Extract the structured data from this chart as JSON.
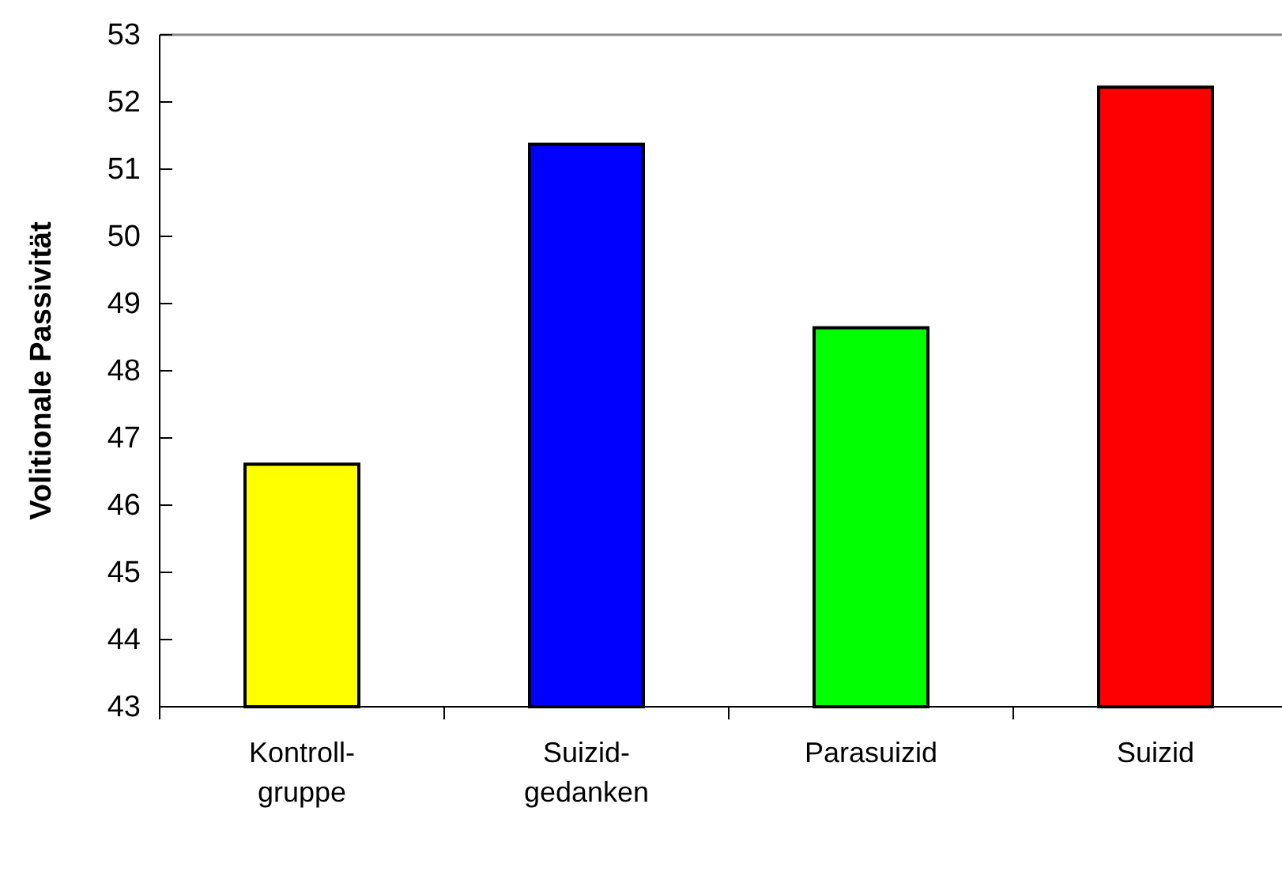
{
  "chart_data": {
    "type": "bar",
    "ylabel": "Volitionale Passivität",
    "categories": [
      "Kontroll-\ngruppe",
      "Suizid-\ngedanken",
      "Parasuizid",
      "Suizid"
    ],
    "values": [
      46.61,
      51.37,
      48.64,
      52.22
    ],
    "colors": [
      "#ffff00",
      "#0000ff",
      "#00ff00",
      "#ff0000"
    ],
    "ylim": [
      43,
      53
    ],
    "yticks": [
      43,
      44,
      45,
      46,
      47,
      48,
      49,
      50,
      51,
      52,
      53
    ],
    "grid": false
  }
}
